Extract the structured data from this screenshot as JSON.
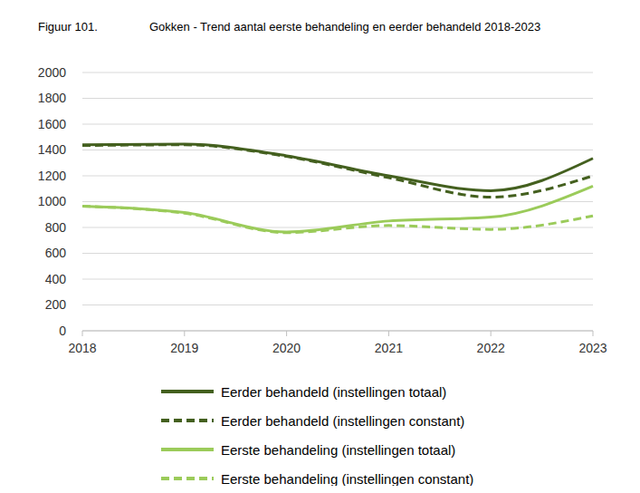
{
  "chart_data": {
    "type": "line",
    "figure": "Figuur 101.",
    "title": "Gokken - Trend aantal eerste behandeling en eerder behandeld 2018-2023",
    "categories": [
      "2018",
      "2019",
      "2020",
      "2021",
      "2022",
      "2023"
    ],
    "series": [
      {
        "name": "Eerder behandeld (instellingen totaal)",
        "color": "#44601f",
        "line_style": "solid",
        "values": [
          1440,
          1445,
          1355,
          1200,
          1085,
          1335
        ]
      },
      {
        "name": "Eerder behandeld (instellingen constant)",
        "color": "#44601f",
        "line_style": "dashed",
        "values": [
          1435,
          1440,
          1350,
          1185,
          1035,
          1200
        ]
      },
      {
        "name": "Eerste behandeling (instellingen totaal)",
        "color": "#9bcb5a",
        "line_style": "solid",
        "values": [
          965,
          915,
          765,
          850,
          880,
          1120
        ]
      },
      {
        "name": "Eerste behandeling (instellingen constant)",
        "color": "#9bcb5a",
        "line_style": "dashed",
        "values": [
          965,
          910,
          760,
          815,
          785,
          890
        ]
      }
    ],
    "ylim": [
      0,
      2000
    ],
    "yticks": [
      0,
      200,
      400,
      600,
      800,
      1000,
      1200,
      1400,
      1600,
      1800,
      2000
    ],
    "grid": true,
    "legend": "bottom"
  }
}
